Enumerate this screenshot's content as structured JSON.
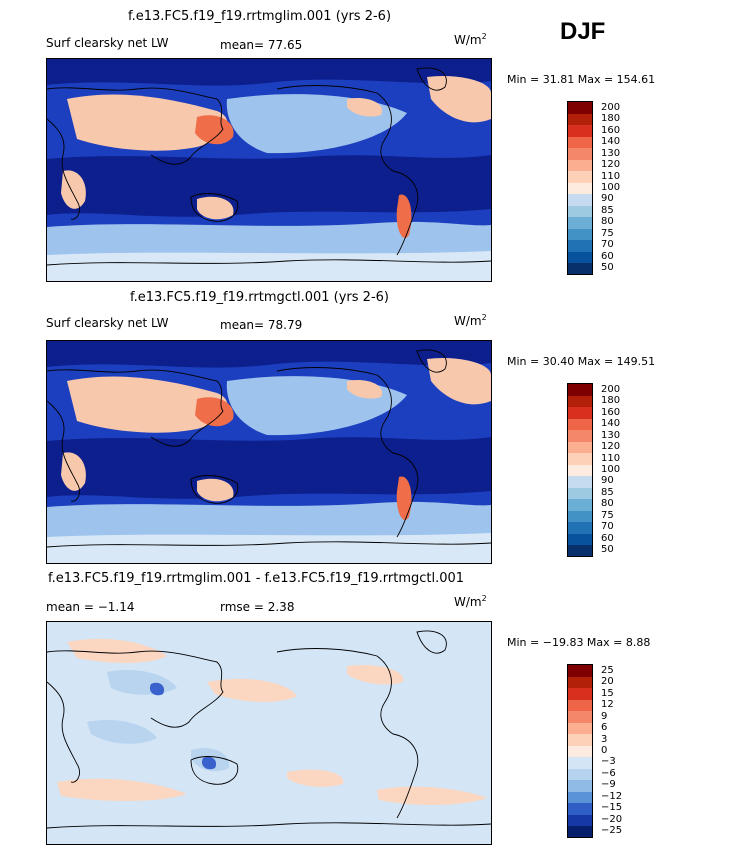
{
  "season": "DJF",
  "panels": [
    {
      "title": "f.e13.FC5.f19_f19.rrtmglim.001 (yrs 2-6)",
      "variable": "Surf clearsky net LW",
      "stat": "mean=  77.65",
      "units": "W/m",
      "units_sup": "2",
      "minmax": "Min =  31.81 Max = 154.61",
      "colorbar": {
        "labels": [
          "200",
          "180",
          "160",
          "140",
          "130",
          "120",
          "110",
          "100",
          "90",
          "85",
          "80",
          "75",
          "70",
          "60",
          "50"
        ],
        "colors": [
          "#7f0000",
          "#b2200a",
          "#d7301f",
          "#ef6548",
          "#f4876a",
          "#fcae91",
          "#fdd0b8",
          "#fdebe0",
          "#c6dbef",
          "#9ecae1",
          "#6baed6",
          "#4292c6",
          "#2171b5",
          "#08519c",
          "#08306b"
        ]
      },
      "fields": {
        "bg": "#1c3fbf",
        "dark": "#0c1f8c",
        "light": "#9ec3ec",
        "pale": "#d9e8f7",
        "warm": "#f8c8ad",
        "hot": "#ef6d48"
      }
    },
    {
      "title": "f.e13.FC5.f19_f19.rrtmgctl.001 (yrs 2-6)",
      "variable": "Surf clearsky net LW",
      "stat": "mean=  78.79",
      "units": "W/m",
      "units_sup": "2",
      "minmax": "Min =  30.40 Max = 149.51",
      "colorbar": {
        "labels": [
          "200",
          "180",
          "160",
          "140",
          "130",
          "120",
          "110",
          "100",
          "90",
          "85",
          "80",
          "75",
          "70",
          "60",
          "50"
        ],
        "colors": [
          "#7f0000",
          "#b2200a",
          "#d7301f",
          "#ef6548",
          "#f4876a",
          "#fcae91",
          "#fdd0b8",
          "#fdebe0",
          "#c6dbef",
          "#9ecae1",
          "#6baed6",
          "#4292c6",
          "#2171b5",
          "#08519c",
          "#08306b"
        ]
      },
      "fields": {
        "bg": "#1c3fbf",
        "dark": "#0c1f8c",
        "light": "#9ec3ec",
        "pale": "#d9e8f7",
        "warm": "#f8c8ad",
        "hot": "#ef6d48"
      }
    },
    {
      "title": "f.e13.FC5.f19_f19.rrtmglim.001 - f.e13.FC5.f19_f19.rrtmgctl.001",
      "stat": "mean =  −1.14",
      "rmse": "rmse =   2.38",
      "units": "W/m",
      "units_sup": "2",
      "minmax": "Min = −19.83 Max =   8.88",
      "colorbar": {
        "labels": [
          "25",
          "20",
          "15",
          "12",
          "9",
          "6",
          "3",
          "0",
          "−3",
          "−6",
          "−9",
          "−12",
          "−15",
          "−20",
          "−25"
        ],
        "colors": [
          "#7f0000",
          "#b2200a",
          "#d7301f",
          "#ef6548",
          "#f4876a",
          "#fcae91",
          "#fdd0b8",
          "#fdebe0",
          "#d4e5f6",
          "#b5d3ee",
          "#8fbbe6",
          "#5a93d8",
          "#2f5fc4",
          "#1538a6",
          "#08206b"
        ]
      },
      "fields": {
        "bg": "#d4e5f6",
        "dark": "#3a62cc",
        "light": "#b8d4ef",
        "pale": "#d9e8f7",
        "warm": "#fbd6c0",
        "hot": "#f5b08f"
      }
    }
  ]
}
